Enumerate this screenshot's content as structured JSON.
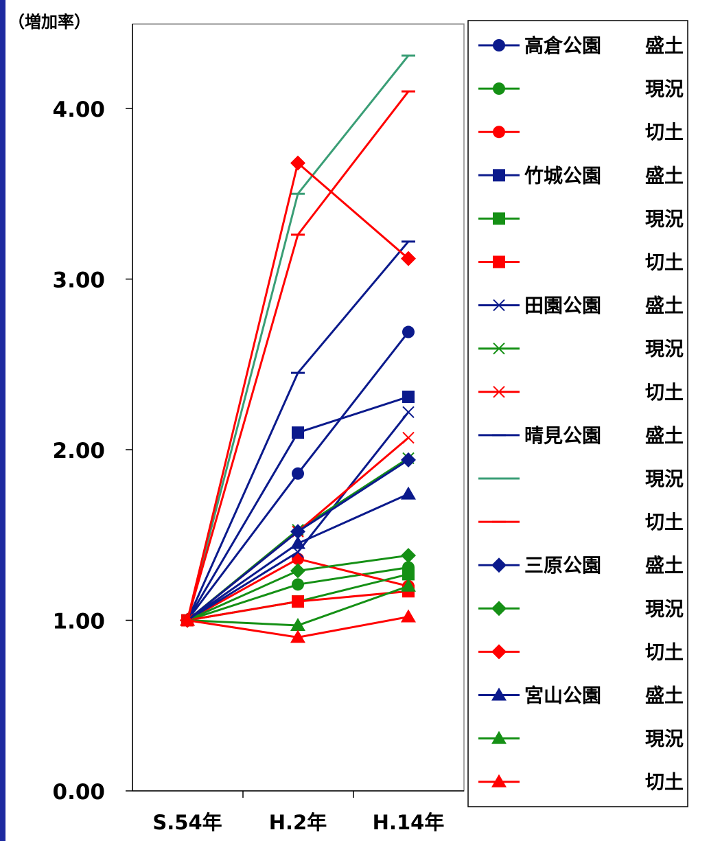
{
  "chart_data": {
    "type": "line",
    "ylabel": "（増加率）",
    "categories": [
      "S.54年",
      "H.2年",
      "H.14年"
    ],
    "ylim": [
      0,
      4.5
    ],
    "yticks": [
      "0.00",
      "1.00",
      "2.00",
      "3.00",
      "4.00"
    ],
    "ytick_values": [
      0,
      1,
      2,
      3,
      4
    ],
    "legend_position": "right",
    "colors": {
      "navy": "#0b1a8c",
      "green": "#159015",
      "red": "#ff0000",
      "teal": "#3a9e76"
    },
    "series": [
      {
        "name": "高倉公園 盛土",
        "legend_name": "高倉公園",
        "legend_sub": "盛土",
        "color": "#0b1a8c",
        "marker": "circle",
        "values": [
          1.0,
          1.86,
          2.69
        ]
      },
      {
        "name": "高倉公園 現況",
        "legend_name": "",
        "legend_sub": "現況",
        "color": "#159015",
        "marker": "circle",
        "values": [
          1.0,
          1.21,
          1.31
        ]
      },
      {
        "name": "高倉公園 切土",
        "legend_name": "",
        "legend_sub": "切土",
        "color": "#ff0000",
        "marker": "circle",
        "values": [
          1.0,
          1.36,
          1.2
        ]
      },
      {
        "name": "竹城公園 盛土",
        "legend_name": "竹城公園",
        "legend_sub": "盛土",
        "color": "#0b1a8c",
        "marker": "square",
        "values": [
          1.0,
          2.1,
          2.31
        ]
      },
      {
        "name": "竹城公園 現況",
        "legend_name": "",
        "legend_sub": "現況",
        "color": "#159015",
        "marker": "square",
        "values": [
          1.0,
          1.11,
          1.27
        ]
      },
      {
        "name": "竹城公園 切土",
        "legend_name": "",
        "legend_sub": "切土",
        "color": "#ff0000",
        "marker": "square",
        "values": [
          1.0,
          1.11,
          1.17
        ]
      },
      {
        "name": "田園公園 盛土",
        "legend_name": "田園公園",
        "legend_sub": "盛土",
        "color": "#0b1a8c",
        "marker": "x",
        "values": [
          1.0,
          1.4,
          2.22
        ]
      },
      {
        "name": "田園公園 現況",
        "legend_name": "",
        "legend_sub": "現況",
        "color": "#159015",
        "marker": "x",
        "values": [
          1.0,
          1.53,
          1.95
        ]
      },
      {
        "name": "田園公園 切土",
        "legend_name": "",
        "legend_sub": "切土",
        "color": "#ff0000",
        "marker": "x",
        "values": [
          1.0,
          1.52,
          2.07
        ]
      },
      {
        "name": "晴見公園 盛土",
        "legend_name": "晴見公園",
        "legend_sub": "盛土",
        "color": "#0b1a8c",
        "marker": "dash",
        "values": [
          1.0,
          2.45,
          3.22
        ]
      },
      {
        "name": "晴見公園 現況",
        "legend_name": "",
        "legend_sub": "現況",
        "color": "#3a9e76",
        "marker": "dash",
        "values": [
          1.0,
          3.5,
          4.31
        ]
      },
      {
        "name": "晴見公園 切土",
        "legend_name": "",
        "legend_sub": "切土",
        "color": "#ff0000",
        "marker": "dash",
        "values": [
          1.0,
          3.26,
          4.1
        ]
      },
      {
        "name": "三原公園 盛土",
        "legend_name": "三原公園",
        "legend_sub": "盛土",
        "color": "#0b1a8c",
        "marker": "diamond",
        "values": [
          1.0,
          1.52,
          1.94
        ]
      },
      {
        "name": "三原公園 現況",
        "legend_name": "",
        "legend_sub": "現況",
        "color": "#159015",
        "marker": "diamond",
        "values": [
          1.0,
          1.29,
          1.38
        ]
      },
      {
        "name": "三原公園 切土",
        "legend_name": "",
        "legend_sub": "切土",
        "color": "#ff0000",
        "marker": "diamond",
        "values": [
          1.0,
          3.68,
          3.12
        ]
      },
      {
        "name": "宮山公園 盛土",
        "legend_name": "宮山公園",
        "legend_sub": "盛土",
        "color": "#0b1a8c",
        "marker": "triangle",
        "values": [
          1.0,
          1.45,
          1.74
        ]
      },
      {
        "name": "宮山公園 現況",
        "legend_name": "",
        "legend_sub": "現況",
        "color": "#159015",
        "marker": "triangle",
        "values": [
          1.0,
          0.97,
          1.2
        ]
      },
      {
        "name": "宮山公園 切土",
        "legend_name": "",
        "legend_sub": "切土",
        "color": "#ff0000",
        "marker": "triangle",
        "values": [
          1.0,
          0.9,
          1.02
        ]
      }
    ]
  }
}
